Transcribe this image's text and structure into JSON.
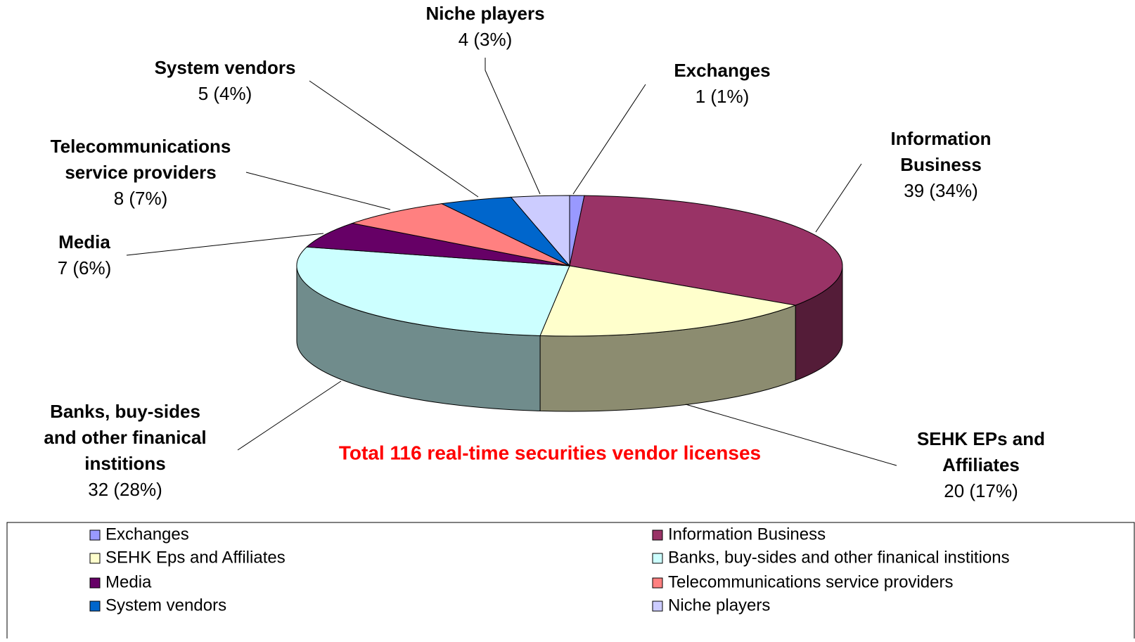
{
  "chart_data": {
    "type": "pie3d",
    "title": "Total 116 real-time securities vendor licenses",
    "categories": [
      "Exchanges",
      "Information Business",
      "SEHK Eps and Affiliates",
      "Banks, buy-sides and other finanical institions",
      "Media",
      "Telecommunications service providers",
      "System vendors",
      "Niche players"
    ],
    "values": [
      1,
      39,
      20,
      32,
      7,
      8,
      5,
      4
    ],
    "value_labels": [
      "1 (1%)",
      "39 (34%)",
      "20 (17%)",
      "32 (28%)",
      "7 (6%)",
      "8 (7%)",
      "5 (4%)",
      "4 (3%)"
    ],
    "labels": [
      [
        "Exchanges"
      ],
      [
        "Information",
        "Business"
      ],
      [
        "SEHK EPs and",
        "Affiliates"
      ],
      [
        "Banks, buy-sides",
        "and other finanical",
        "institions"
      ],
      [
        "Media"
      ],
      [
        "Telecommunications",
        "service providers"
      ],
      [
        "System vendors"
      ],
      [
        "Niche players"
      ]
    ],
    "colors": [
      "#9999ff",
      "#993366",
      "#ffffcc",
      "#ccffff",
      "#660066",
      "#ff8080",
      "#0066cc",
      "#ccccff"
    ],
    "legend": "bottom"
  }
}
